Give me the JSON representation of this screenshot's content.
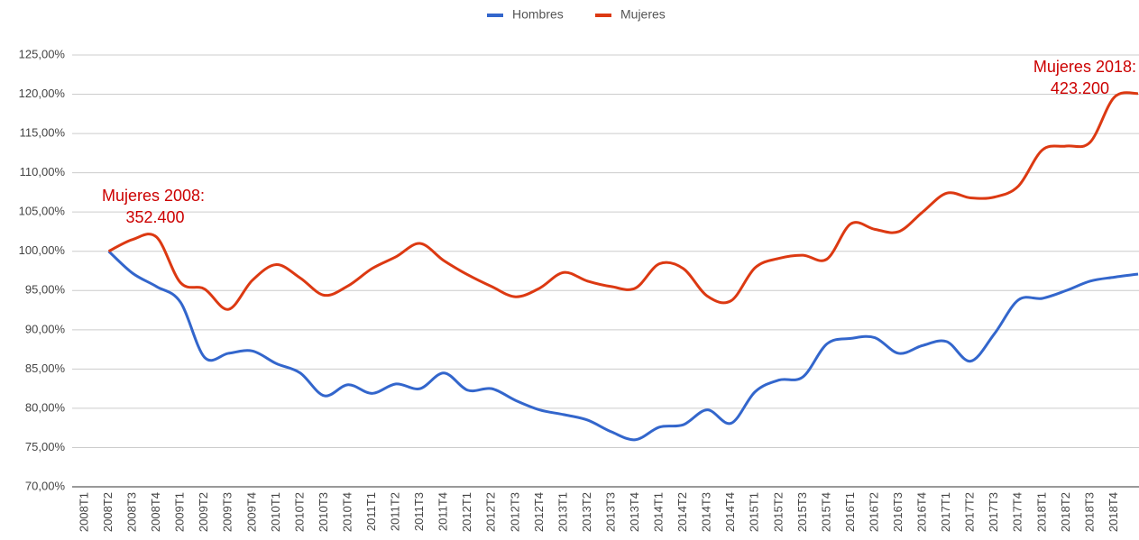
{
  "chart_data": {
    "type": "line",
    "categories": [
      "2008T1",
      "2008T2",
      "2008T3",
      "2008T4",
      "2009T1",
      "2009T2",
      "2009T3",
      "2009T4",
      "2010T1",
      "2010T2",
      "2010T3",
      "2010T4",
      "2011T1",
      "2011T2",
      "2011T3",
      "2011T4",
      "2012T1",
      "2012T2",
      "2012T3",
      "2012T4",
      "2013T1",
      "2013T2",
      "2013T3",
      "2013T4",
      "2014T1",
      "2014T2",
      "2014T3",
      "2014T4",
      "2015T1",
      "2015T2",
      "2015T3",
      "2015T4",
      "2016T1",
      "2016T2",
      "2016T3",
      "2016T4",
      "2017T1",
      "2017T2",
      "2017T3",
      "2017T4",
      "2018T1",
      "2018T2",
      "2018T3",
      "2018T4",
      null
    ],
    "series": [
      {
        "name": "Hombres",
        "color": "#3366cc",
        "values": [
          null,
          100,
          97.2,
          95.5,
          93.5,
          86.5,
          87.0,
          87.3,
          85.7,
          84.5,
          81.6,
          83.0,
          81.9,
          83.1,
          82.5,
          84.5,
          82.3,
          82.5,
          81.0,
          79.8,
          79.2,
          78.5,
          77.0,
          76.0,
          77.6,
          77.9,
          79.8,
          78.1,
          82.1,
          83.6,
          84.0,
          88.2,
          88.9,
          89.0,
          87.0,
          88.0,
          88.5,
          86.0,
          89.5,
          93.8,
          94.0,
          95.0,
          96.2,
          96.7,
          97.1
        ]
      },
      {
        "name": "Mujeres",
        "color": "#dc3912",
        "values": [
          null,
          100,
          101.5,
          101.8,
          96.0,
          95.2,
          92.6,
          96.3,
          98.3,
          96.6,
          94.4,
          95.6,
          97.8,
          99.3,
          101.0,
          98.8,
          97.0,
          95.5,
          94.2,
          95.3,
          97.3,
          96.2,
          95.5,
          95.3,
          98.4,
          97.8,
          94.3,
          93.7,
          97.9,
          99.1,
          99.5,
          99.0,
          103.5,
          102.8,
          102.5,
          105.0,
          107.4,
          106.8,
          106.9,
          108.3,
          112.9,
          113.4,
          113.9,
          119.6,
          120.1
        ]
      }
    ],
    "ylim": [
      70,
      125
    ],
    "yticks": [
      {
        "value": 70,
        "label": "70,00%"
      },
      {
        "value": 75,
        "label": "75,00%"
      },
      {
        "value": 80,
        "label": "80,00%"
      },
      {
        "value": 85,
        "label": "85,00%"
      },
      {
        "value": 90,
        "label": "90,00%"
      },
      {
        "value": 95,
        "label": "95,00%"
      },
      {
        "value": 100,
        "label": "100,00%"
      },
      {
        "value": 105,
        "label": "105,00%"
      },
      {
        "value": 110,
        "label": "110,00%"
      },
      {
        "value": 115,
        "label": "115,00%"
      },
      {
        "value": 120,
        "label": "120,00%"
      },
      {
        "value": 125,
        "label": "125,00%"
      }
    ],
    "grid": true,
    "legend": "top",
    "annotations": [
      {
        "lines": [
          "Mujeres 2008:",
          "352.400"
        ],
        "color": "#cc0000"
      },
      {
        "lines": [
          "Mujeres 2018:",
          "423.200"
        ],
        "color": "#cc0000"
      }
    ]
  }
}
